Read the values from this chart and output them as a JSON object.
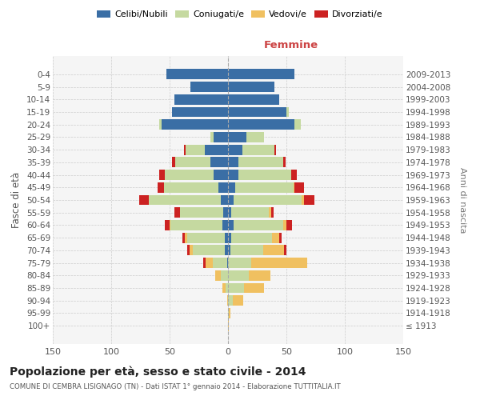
{
  "title": "Popolazione per età, sesso e stato civile - 2014",
  "subtitle": "COMUNE DI CEMBRA LISIGNAGO (TN) - Dati ISTAT 1° gennaio 2014 - Elaborazione TUTTITALIA.IT",
  "age_groups": [
    "100+",
    "95-99",
    "90-94",
    "85-89",
    "80-84",
    "75-79",
    "70-74",
    "65-69",
    "60-64",
    "55-59",
    "50-54",
    "45-49",
    "40-44",
    "35-39",
    "30-34",
    "25-29",
    "20-24",
    "15-19",
    "10-14",
    "5-9",
    "0-4"
  ],
  "birth_years": [
    "≤ 1913",
    "1914-1918",
    "1919-1923",
    "1924-1928",
    "1929-1933",
    "1934-1938",
    "1939-1943",
    "1944-1948",
    "1949-1953",
    "1954-1958",
    "1959-1963",
    "1964-1968",
    "1969-1973",
    "1974-1978",
    "1979-1983",
    "1984-1988",
    "1989-1993",
    "1994-1998",
    "1999-2003",
    "2004-2008",
    "2009-2013"
  ],
  "colors": {
    "celibi": "#3a6ea5",
    "coniugati": "#c5d9a0",
    "vedovi": "#f0c060",
    "divorziati": "#cc2222"
  },
  "males": {
    "celibi": [
      0,
      0,
      0,
      0,
      0,
      1,
      3,
      3,
      5,
      4,
      6,
      8,
      12,
      15,
      20,
      12,
      57,
      48,
      46,
      32,
      53
    ],
    "coniugati": [
      0,
      0,
      0,
      2,
      6,
      12,
      27,
      32,
      44,
      37,
      62,
      47,
      42,
      30,
      16,
      3,
      2,
      0,
      0,
      0,
      0
    ],
    "vedovi": [
      0,
      0,
      1,
      3,
      5,
      6,
      3,
      2,
      1,
      0,
      0,
      0,
      0,
      0,
      0,
      0,
      0,
      0,
      0,
      0,
      0
    ],
    "divorziati": [
      0,
      0,
      0,
      0,
      0,
      2,
      2,
      2,
      4,
      5,
      8,
      5,
      5,
      3,
      2,
      0,
      0,
      0,
      0,
      0,
      0
    ]
  },
  "females": {
    "celibi": [
      0,
      0,
      0,
      0,
      0,
      0,
      2,
      3,
      5,
      3,
      5,
      6,
      9,
      9,
      12,
      16,
      57,
      50,
      44,
      40,
      57
    ],
    "coniugati": [
      0,
      1,
      4,
      14,
      18,
      20,
      28,
      35,
      42,
      32,
      58,
      50,
      45,
      38,
      28,
      15,
      5,
      2,
      0,
      0,
      0
    ],
    "vedovi": [
      1,
      1,
      9,
      17,
      18,
      48,
      18,
      6,
      3,
      2,
      2,
      1,
      0,
      0,
      0,
      0,
      0,
      0,
      0,
      0,
      0
    ],
    "divorziati": [
      0,
      0,
      0,
      0,
      0,
      0,
      2,
      2,
      5,
      2,
      9,
      8,
      5,
      2,
      1,
      0,
      0,
      0,
      0,
      0,
      0
    ]
  },
  "xlim": 150,
  "xlabel_right": "Femmine",
  "ylabel": "Fasce di età",
  "ylabel_right": "Anni di nascita",
  "background_color": "#ffffff",
  "grid_color": "#cccccc"
}
